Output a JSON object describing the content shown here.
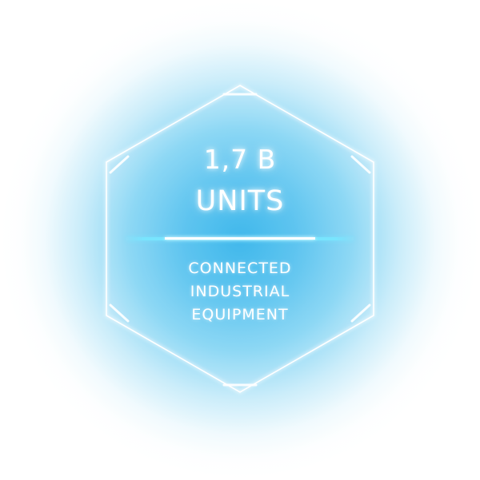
{
  "badge": {
    "value_line": "1,7 B",
    "unit_line": "UNITS",
    "description_lines": [
      "CONNECTED",
      "INDUSTRIAL",
      "EQUIPMENT"
    ]
  },
  "colors": {
    "glow": "#37b4eb",
    "divider_accent": "#78e6ff",
    "text": "#ffffff",
    "background": "#ffffff"
  }
}
